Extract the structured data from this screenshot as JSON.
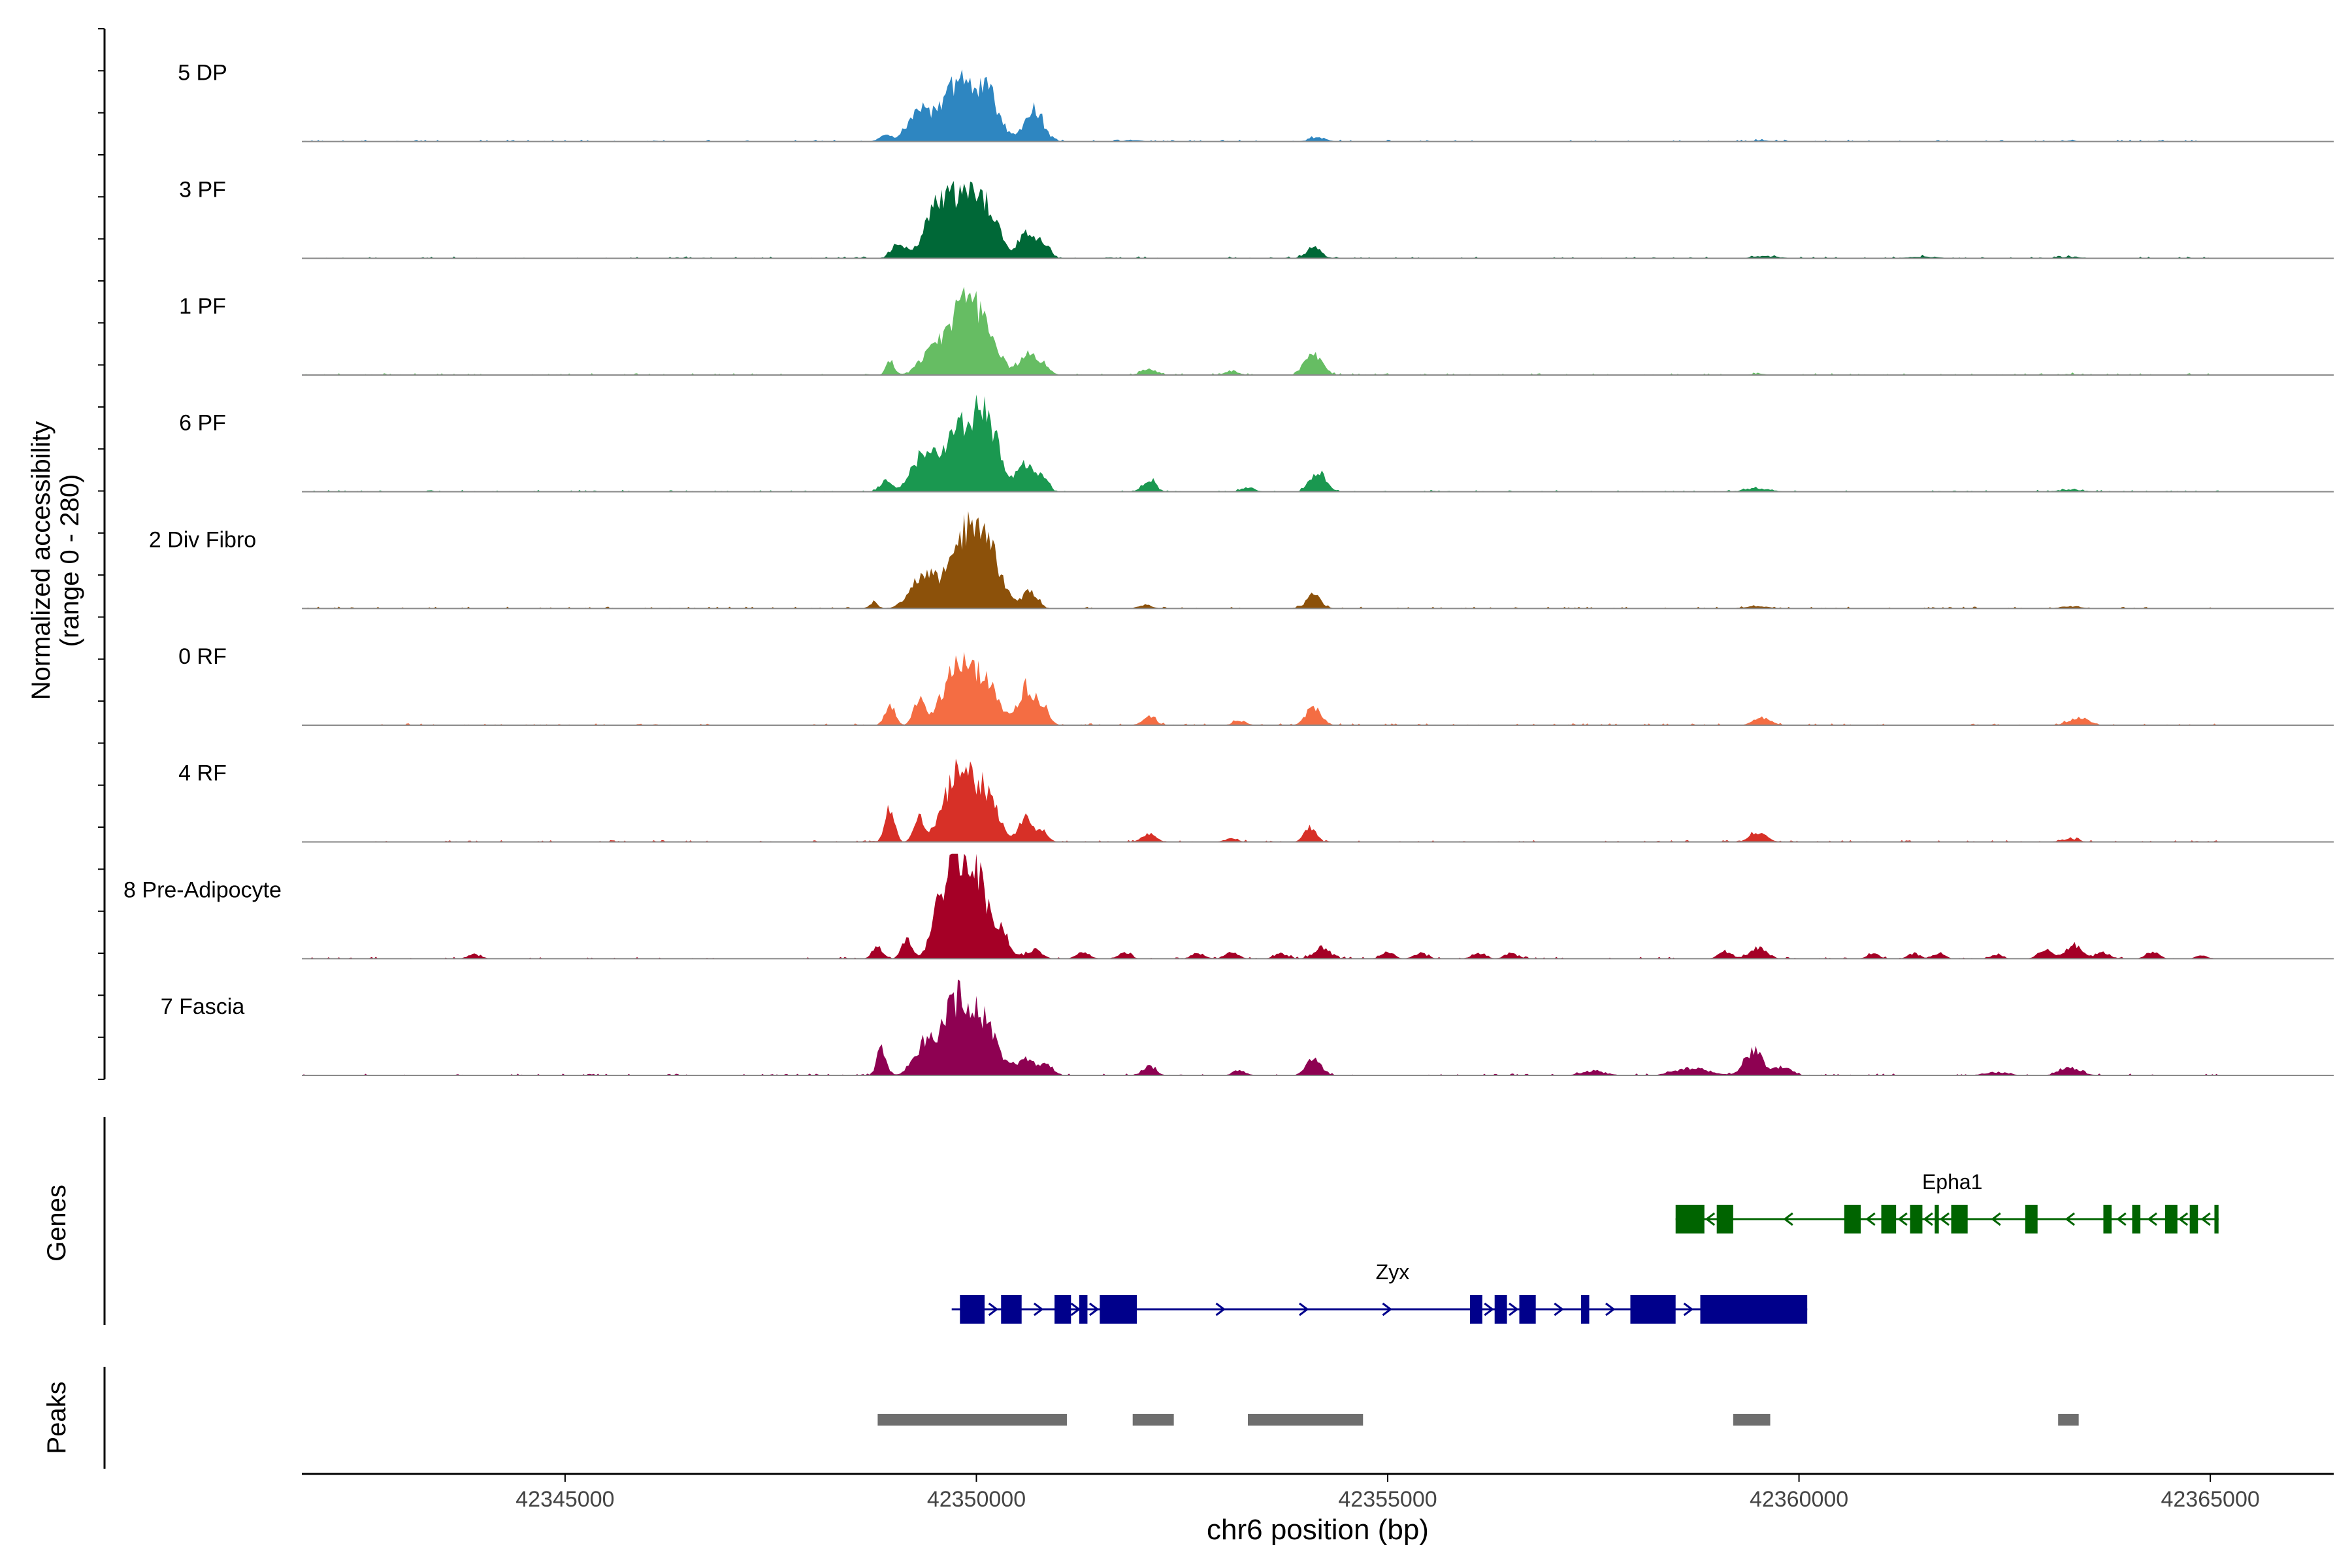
{
  "chart_data": {
    "type": "area",
    "title": "",
    "ylabel_line1": "Normalized accessibility",
    "ylabel_line2": "(range 0 - 280)",
    "xlabel": "chr6 position (bp)",
    "xlim": [
      42341800,
      42366500
    ],
    "ylim": [
      0,
      280
    ],
    "x_ticks": [
      42345000,
      42350000,
      42355000,
      42360000,
      42365000
    ],
    "x_tick_labels": [
      "42345000",
      "42350000",
      "42355000",
      "42360000",
      "42365000"
    ],
    "track_range": [
      42341800,
      42365100
    ],
    "series": [
      {
        "name": "5 DP",
        "color": "#2E86C1",
        "peaks": [
          [
            42348900,
            60,
            80
          ],
          [
            42349300,
            260,
            130
          ],
          [
            42349800,
            540,
            220
          ],
          [
            42350150,
            330,
            140
          ],
          [
            42350700,
            300,
            110
          ],
          [
            42351900,
            16,
            100
          ],
          [
            42354150,
            40,
            100
          ],
          [
            42359550,
            12,
            100
          ],
          [
            42363300,
            8,
            100
          ]
        ]
      },
      {
        "name": "3 PF",
        "color": "#006837",
        "peaks": [
          [
            42349050,
            150,
            80
          ],
          [
            42349500,
            380,
            140
          ],
          [
            42349850,
            560,
            220
          ],
          [
            42350150,
            260,
            150
          ],
          [
            42350600,
            260,
            80
          ],
          [
            42350800,
            150,
            80
          ],
          [
            42354100,
            100,
            90
          ],
          [
            42359600,
            20,
            150
          ],
          [
            42361500,
            14,
            200
          ],
          [
            42363300,
            14,
            150
          ]
        ]
      },
      {
        "name": "1 PF",
        "color": "#66BD63",
        "peaks": [
          [
            42348950,
            130,
            50
          ],
          [
            42349450,
            200,
            140
          ],
          [
            42349870,
            660,
            200
          ],
          [
            42350150,
            200,
            150
          ],
          [
            42350600,
            180,
            90
          ],
          [
            42350800,
            120,
            80
          ],
          [
            42352100,
            60,
            90
          ],
          [
            42353100,
            40,
            80
          ],
          [
            42354100,
            200,
            100
          ],
          [
            42359500,
            12,
            100
          ],
          [
            42363300,
            10,
            100
          ]
        ]
      },
      {
        "name": "6 PF",
        "color": "#1A9850",
        "peaks": [
          [
            42348900,
            110,
            70
          ],
          [
            42349350,
            280,
            140
          ],
          [
            42349880,
            620,
            260
          ],
          [
            42350150,
            330,
            150
          ],
          [
            42350600,
            270,
            80
          ],
          [
            42350800,
            140,
            70
          ],
          [
            42352100,
            110,
            80
          ],
          [
            42353300,
            40,
            80
          ],
          [
            42354150,
            200,
            90
          ],
          [
            42359500,
            30,
            150
          ],
          [
            42363300,
            20,
            150
          ]
        ]
      },
      {
        "name": "2 Div Fibro",
        "color": "#8C510A",
        "peaks": [
          [
            42348750,
            60,
            50
          ],
          [
            42349350,
            300,
            150
          ],
          [
            42349900,
            720,
            210
          ],
          [
            42350200,
            280,
            140
          ],
          [
            42350650,
            160,
            90
          ],
          [
            42352050,
            36,
            80
          ],
          [
            42354100,
            120,
            90
          ],
          [
            42359500,
            20,
            150
          ],
          [
            42363300,
            20,
            120
          ]
        ]
      },
      {
        "name": "0 RF",
        "color": "#F46D43",
        "peaks": [
          [
            42348950,
            200,
            60
          ],
          [
            42349300,
            230,
            60
          ],
          [
            42349800,
            560,
            200
          ],
          [
            42350150,
            300,
            140
          ],
          [
            42350600,
            350,
            90
          ],
          [
            42350800,
            180,
            80
          ],
          [
            42352100,
            80,
            80
          ],
          [
            42353200,
            40,
            80
          ],
          [
            42354100,
            180,
            90
          ],
          [
            42359550,
            70,
            100
          ],
          [
            42363400,
            70,
            120
          ]
        ]
      },
      {
        "name": "4 RF",
        "color": "#D73027",
        "peaks": [
          [
            42348950,
            320,
            55
          ],
          [
            42349300,
            240,
            60
          ],
          [
            42349800,
            680,
            180
          ],
          [
            42350150,
            380,
            130
          ],
          [
            42350600,
            220,
            80
          ],
          [
            42350800,
            100,
            70
          ],
          [
            42352100,
            80,
            80
          ],
          [
            42353100,
            30,
            80
          ],
          [
            42354050,
            140,
            70
          ],
          [
            42359500,
            90,
            100
          ],
          [
            42363300,
            30,
            100
          ]
        ]
      },
      {
        "name": "8 Pre-Adipocyte",
        "color": "#A50026",
        "peaks": [
          [
            42348800,
            120,
            60
          ],
          [
            42349150,
            180,
            60
          ],
          [
            42349550,
            400,
            100
          ],
          [
            42349750,
            780,
            120
          ],
          [
            42350000,
            780,
            130
          ],
          [
            42350300,
            260,
            100
          ],
          [
            42350700,
            80,
            90
          ],
          [
            42351300,
            60,
            80
          ],
          [
            42351800,
            50,
            80
          ],
          [
            42352700,
            50,
            80
          ],
          [
            42353100,
            60,
            80
          ],
          [
            42353700,
            50,
            80
          ],
          [
            42354200,
            100,
            100
          ],
          [
            42355000,
            50,
            80
          ],
          [
            42355400,
            50,
            80
          ],
          [
            42356100,
            50,
            80
          ],
          [
            42356500,
            50,
            80
          ],
          [
            42359100,
            60,
            80
          ],
          [
            42359500,
            100,
            100
          ],
          [
            42360900,
            50,
            70
          ],
          [
            42361400,
            50,
            70
          ],
          [
            42361700,
            50,
            70
          ],
          [
            42362400,
            40,
            70
          ],
          [
            42363000,
            80,
            90
          ],
          [
            42363350,
            130,
            100
          ],
          [
            42363700,
            60,
            80
          ],
          [
            42364300,
            60,
            80
          ],
          [
            42364900,
            30,
            70
          ],
          [
            42343900,
            40,
            80
          ]
        ]
      },
      {
        "name": "7 Fascia",
        "color": "#8E0152",
        "peaks": [
          [
            42348850,
            270,
            55
          ],
          [
            42349350,
            230,
            120
          ],
          [
            42349800,
            720,
            210
          ],
          [
            42350150,
            280,
            150
          ],
          [
            42350600,
            160,
            100
          ],
          [
            42350850,
            90,
            80
          ],
          [
            42352100,
            80,
            80
          ],
          [
            42353200,
            40,
            80
          ],
          [
            42354100,
            150,
            90
          ],
          [
            42357500,
            40,
            150
          ],
          [
            42358700,
            70,
            200
          ],
          [
            42359450,
            230,
            110
          ],
          [
            42359800,
            80,
            100
          ],
          [
            42363300,
            70,
            130
          ],
          [
            42362400,
            30,
            150
          ]
        ]
      }
    ],
    "genes": [
      {
        "name": "Epha1",
        "color": "#006400",
        "strand": "-",
        "start": 42358500,
        "end": 42365100,
        "exons": [
          [
            42358500,
            42358850
          ],
          [
            42359000,
            42359200
          ],
          [
            42360550,
            42360750
          ],
          [
            42361000,
            42361180
          ],
          [
            42361350,
            42361500
          ],
          [
            42361650,
            42361700
          ],
          [
            42361850,
            42362050
          ],
          [
            42362750,
            42362900
          ],
          [
            42363700,
            42363800
          ],
          [
            42364050,
            42364150
          ],
          [
            42364450,
            42364600
          ],
          [
            42364750,
            42364850
          ],
          [
            42365050,
            42365100
          ]
        ]
      },
      {
        "name": "Zyx",
        "color": "#00008B",
        "strand": "+",
        "start": 42349700,
        "end": 42360100,
        "exons": [
          [
            42349800,
            42350100
          ],
          [
            42350300,
            42350550
          ],
          [
            42350950,
            42351150
          ],
          [
            42351250,
            42351350
          ],
          [
            42351500,
            42351950
          ],
          [
            42356000,
            42356150
          ],
          [
            42356300,
            42356450
          ],
          [
            42356600,
            42356800
          ],
          [
            42357350,
            42357450
          ],
          [
            42357950,
            42358500
          ],
          [
            42358800,
            42360100
          ]
        ]
      }
    ],
    "peaks_track": [
      [
        42348800,
        42351100
      ],
      [
        42351900,
        42352400
      ],
      [
        42353300,
        42354700
      ],
      [
        42359200,
        42359650
      ],
      [
        42363150,
        42363400
      ]
    ],
    "track_labels": {
      "genes": "Genes",
      "peaks": "Peaks"
    }
  }
}
